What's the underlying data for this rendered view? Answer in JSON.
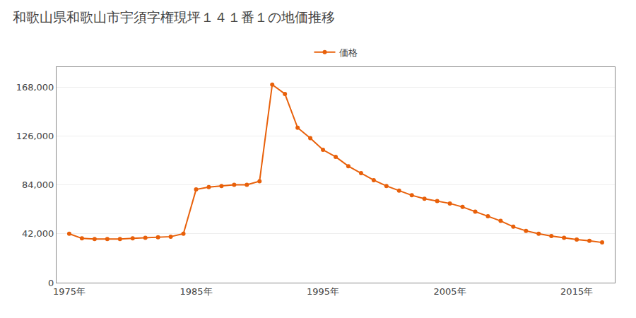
{
  "chart_data": {
    "type": "line",
    "title": "和歌山県和歌山市宇須字権現坪１４１番１の地価推移",
    "x": [
      1975,
      1976,
      1977,
      1978,
      1979,
      1980,
      1981,
      1982,
      1983,
      1984,
      1985,
      1986,
      1987,
      1988,
      1989,
      1990,
      1991,
      1992,
      1993,
      1994,
      1995,
      1996,
      1997,
      1998,
      1999,
      2000,
      2001,
      2002,
      2003,
      2004,
      2005,
      2006,
      2007,
      2008,
      2009,
      2010,
      2011,
      2012,
      2013,
      2014,
      2015,
      2016,
      2017
    ],
    "series": [
      {
        "name": "価格",
        "color": "#E8600A",
        "marker": "circle",
        "line_style": "solid",
        "values": [
          42000,
          38000,
          37500,
          37500,
          37500,
          38000,
          38500,
          39000,
          39500,
          42000,
          80000,
          82000,
          83000,
          84000,
          84000,
          87000,
          170000,
          162000,
          133000,
          124000,
          114000,
          108000,
          100000,
          94000,
          88000,
          83000,
          79000,
          75000,
          72000,
          70000,
          68000,
          65000,
          61000,
          57000,
          53000,
          48000,
          44500,
          42000,
          40000,
          38500,
          37000,
          36000,
          34500
        ]
      }
    ],
    "xlim": [
      1974,
      2018
    ],
    "xticks": [
      {
        "value": 1975,
        "label": "1975年"
      },
      {
        "value": 1985,
        "label": "1985年"
      },
      {
        "value": 1995,
        "label": "1995年"
      },
      {
        "value": 2005,
        "label": "2005年"
      },
      {
        "value": 2015,
        "label": "2015年"
      }
    ],
    "ylim": [
      0,
      185000
    ],
    "yticks": [
      0,
      {
        "value": 42000,
        "label": "42,000"
      },
      {
        "value": 84000,
        "label": "84,000"
      },
      {
        "value": 126000,
        "label": "126,000"
      },
      {
        "value": 168000,
        "label": "168,000"
      }
    ],
    "grid": true,
    "legend": "upper center"
  }
}
